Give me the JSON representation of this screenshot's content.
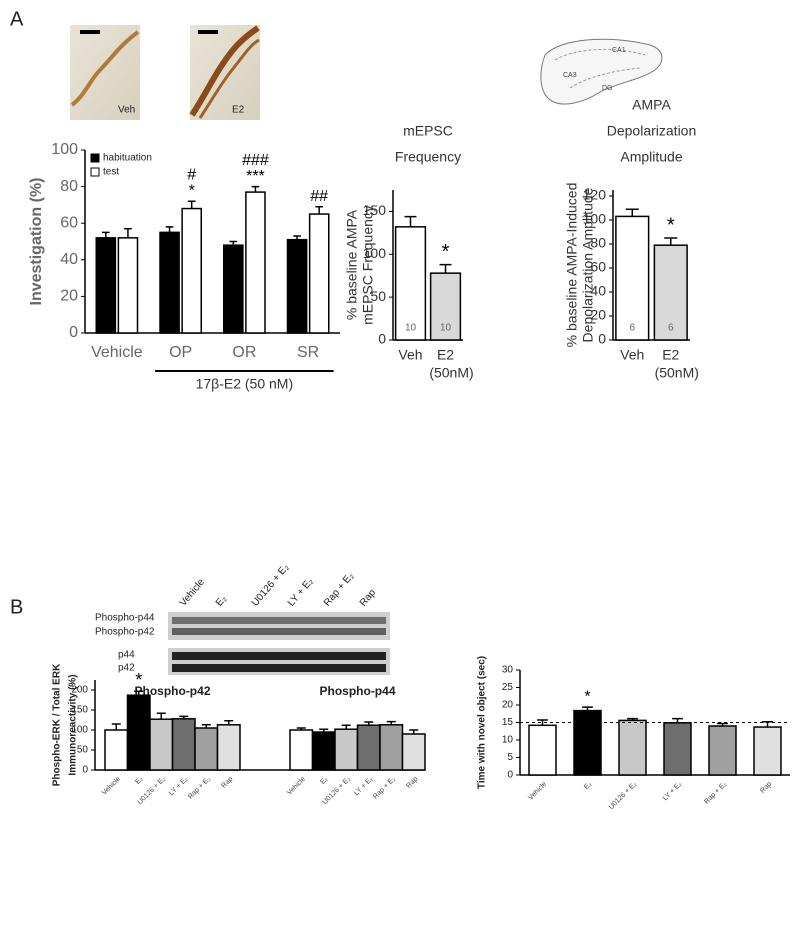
{
  "panels": [
    "A",
    "B"
  ],
  "micrographs": [
    "Veh",
    "E2"
  ],
  "hippocampus_labels": [
    "CA1",
    "CA3",
    "DG"
  ],
  "blot_rows": [
    "Phospho-p44",
    "Phospho-p42",
    "p44",
    "p42"
  ],
  "chart_data": [
    {
      "type": "bar",
      "ylabel": "Investigation (%)",
      "categories": [
        "Vehicle",
        "OP",
        "OR",
        "SR"
      ],
      "series": [
        {
          "name": "habituation",
          "color": "#000000",
          "values": [
            52,
            55,
            48,
            51
          ],
          "errors": [
            3,
            3,
            2,
            2
          ]
        },
        {
          "name": "test",
          "color": "#ffffff",
          "values": [
            52,
            68,
            77,
            65
          ],
          "errors": [
            5,
            4,
            3,
            4
          ],
          "annotations": [
            null,
            [
              "#",
              "*"
            ],
            [
              "###",
              "***"
            ],
            [
              "##"
            ]
          ]
        }
      ],
      "ylim": [
        0,
        100
      ],
      "yticks": [
        0,
        20,
        40,
        60,
        80,
        100
      ],
      "group_label": "17β-E2 (50 nM)",
      "legend": "upper left"
    },
    {
      "type": "bar",
      "title": [
        "mEPSC",
        "Frequency"
      ],
      "ylabel": [
        "% baseline AMPA",
        "mEPSC Frequency"
      ],
      "categories": [
        "Veh",
        "E2"
      ],
      "category_note": "(50nM)",
      "values": [
        132,
        78
      ],
      "errors": [
        12,
        10
      ],
      "colors": [
        "#ffffff",
        "#d9d9d9"
      ],
      "n": [
        10,
        10
      ],
      "annotations": [
        null,
        "*"
      ],
      "ylim": [
        0,
        175
      ],
      "yticks": [
        0,
        50,
        100,
        150
      ]
    },
    {
      "type": "bar",
      "title": [
        "AMPA",
        "Depolarization",
        "Amplitude"
      ],
      "ylabel": [
        "% baseline AMPA-Induced",
        "Depolarization Amplitude"
      ],
      "categories": [
        "Veh",
        "E2"
      ],
      "category_note": "(50nM)",
      "values": [
        103,
        79
      ],
      "errors": [
        6,
        6
      ],
      "colors": [
        "#ffffff",
        "#d9d9d9"
      ],
      "n": [
        6,
        6
      ],
      "annotations": [
        null,
        "*"
      ],
      "ylim": [
        0,
        125
      ],
      "yticks": [
        0,
        20,
        40,
        60,
        80,
        100,
        120
      ]
    },
    {
      "type": "bar",
      "ylabel": [
        "Phospho-ERK / Total ERK",
        "Immunoreactivity (%)"
      ],
      "categories": [
        "Vehicle",
        "E₂",
        "U0126 + E₂",
        "LY + E₂",
        "Rap + E₂",
        "Rap"
      ],
      "colors": [
        "#ffffff",
        "#000000",
        "#c8c8c8",
        "#6e6e6e",
        "#a0a0a0",
        "#e0e0e0"
      ],
      "series": [
        {
          "name": "Phospho-p42",
          "values": [
            100,
            187,
            127,
            128,
            105,
            113
          ],
          "errors": [
            15,
            10,
            15,
            6,
            8,
            10
          ],
          "annotations": [
            null,
            "*",
            null,
            null,
            null,
            null
          ]
        },
        {
          "name": "Phospho-p44",
          "values": [
            100,
            95,
            102,
            112,
            113,
            90
          ],
          "errors": [
            5,
            7,
            10,
            8,
            8,
            10
          ]
        }
      ],
      "ylim": [
        0,
        225
      ],
      "yticks": [
        0,
        50,
        100,
        150,
        200
      ]
    },
    {
      "type": "bar",
      "ylabel": "Time with novel object (sec)",
      "categories": [
        "Vehicle",
        "E₂",
        "U0126 + E₂",
        "LY + E₂",
        "Rap + E₂",
        "Rap"
      ],
      "colors": [
        "#ffffff",
        "#000000",
        "#c8c8c8",
        "#6e6e6e",
        "#a0a0a0",
        "#e0e0e0"
      ],
      "values": [
        14.2,
        18.4,
        15.6,
        14.9,
        14.0,
        13.7
      ],
      "errors": [
        1.5,
        1.0,
        0.5,
        1.2,
        0.7,
        1.5
      ],
      "annotations": [
        null,
        "*",
        null,
        null,
        null,
        null
      ],
      "reference_line": 15,
      "ylim": [
        0,
        30
      ],
      "yticks": [
        0,
        5,
        10,
        15,
        20,
        25,
        30
      ]
    }
  ]
}
